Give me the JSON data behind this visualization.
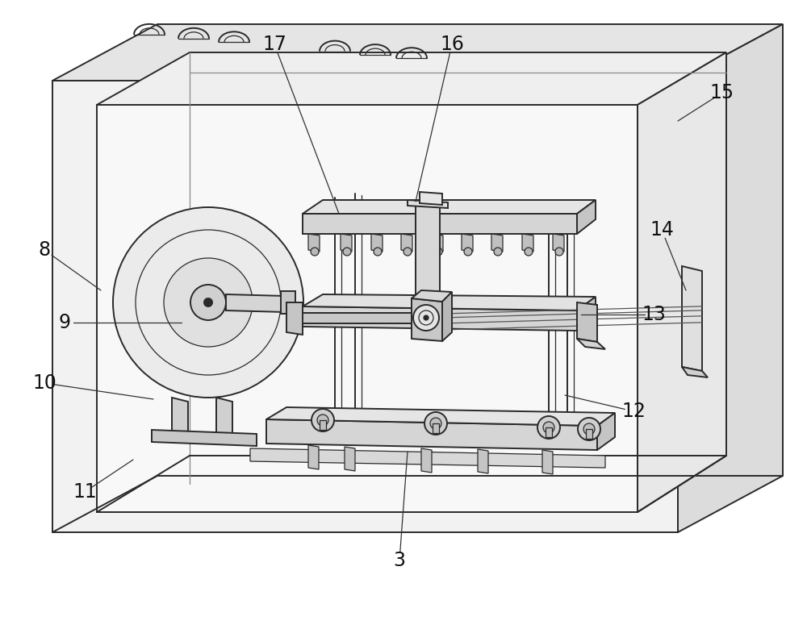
{
  "background_color": "#ffffff",
  "lc": "#2a2a2a",
  "lc_mid": "#555555",
  "fc_white": "#f8f8f8",
  "fc_light": "#eeeeee",
  "fc_mid": "#d8d8d8",
  "fc_dark": "#bbbbbb",
  "fc_darker": "#a0a0a0",
  "figsize": [
    10.0,
    7.75
  ],
  "dpi": 100,
  "annotations": [
    [
      "3",
      495,
      695,
      505,
      560
    ],
    [
      "8",
      55,
      310,
      125,
      360
    ],
    [
      "9",
      80,
      400,
      225,
      400
    ],
    [
      "10",
      55,
      475,
      190,
      495
    ],
    [
      "11",
      105,
      610,
      165,
      570
    ],
    [
      "12",
      785,
      510,
      700,
      490
    ],
    [
      "13",
      810,
      390,
      720,
      390
    ],
    [
      "14",
      820,
      285,
      850,
      360
    ],
    [
      "15",
      895,
      115,
      840,
      150
    ],
    [
      "16",
      560,
      55,
      515,
      250
    ],
    [
      "17",
      340,
      55,
      420,
      265
    ]
  ]
}
